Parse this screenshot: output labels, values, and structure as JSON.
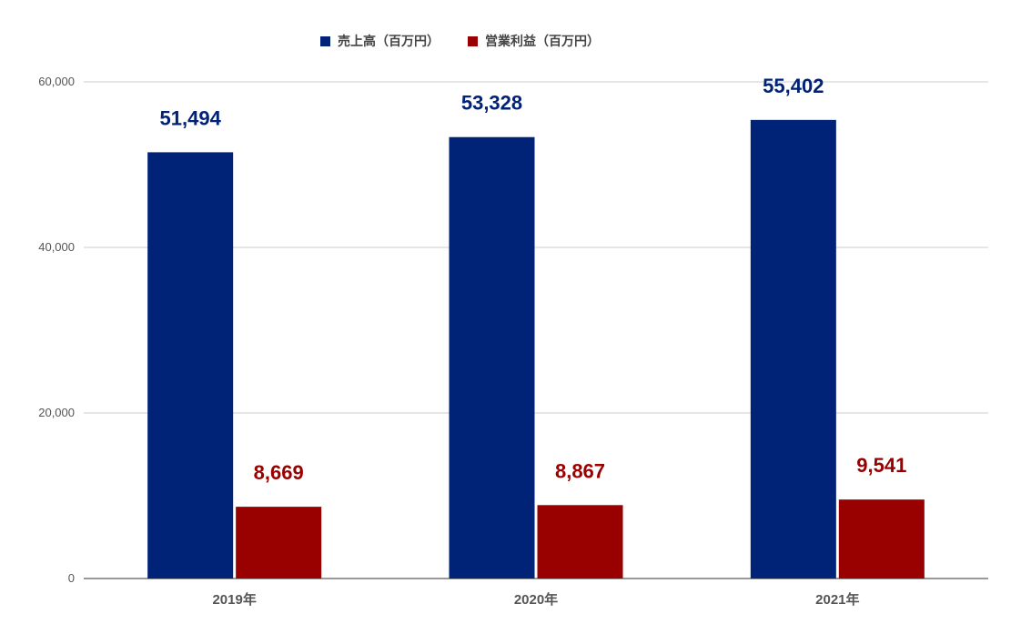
{
  "chart_data": {
    "type": "bar",
    "title": "",
    "xlabel": "",
    "ylabel": "",
    "categories": [
      "2019年",
      "2020年",
      "2021年"
    ],
    "series": [
      {
        "name": "売上高（百万円）",
        "color": "#002277",
        "values": [
          51494,
          53328,
          55402
        ]
      },
      {
        "name": "営業利益（百万円）",
        "color": "#990000",
        "values": [
          8669,
          8867,
          9541
        ]
      }
    ],
    "data_labels": [
      [
        "51,494",
        "53,328",
        "55,402"
      ],
      [
        "8,669",
        "8,867",
        "9,541"
      ]
    ],
    "ylim": [
      0,
      60000
    ],
    "yticks": [
      0,
      20000,
      40000,
      60000
    ],
    "ytick_labels": [
      "0",
      "20,000",
      "40,000",
      "60,000"
    ],
    "grid": true,
    "legend_position": "top-center"
  }
}
